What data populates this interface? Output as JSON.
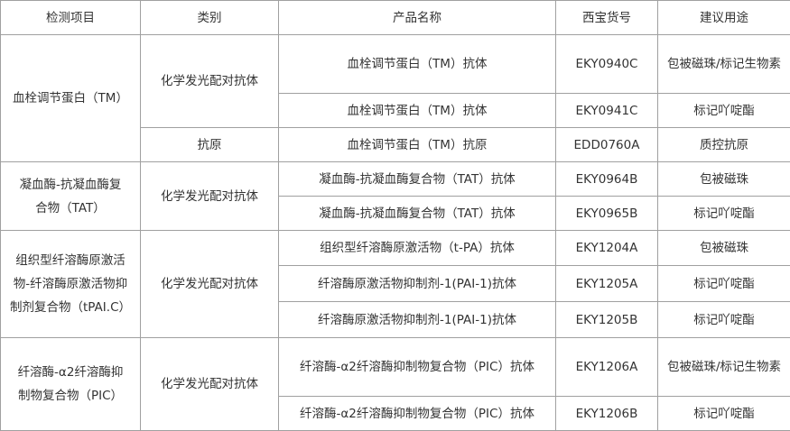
{
  "headers": [
    "检测项目",
    "类别",
    "产品名称",
    "西宝货号",
    "建议用途"
  ],
  "groups": [
    {
      "item": "血栓调节蛋白（TM）",
      "categories": [
        {
          "name": "化学发光配对抗体",
          "rows": [
            {
              "product": "血栓调节蛋白（TM）抗体",
              "sku": "EKY0940C",
              "use": "包被磁珠/标记生物素"
            },
            {
              "product": "血栓调节蛋白（TM）抗体",
              "sku": "EKY0941C",
              "use": "标记吖啶酯"
            }
          ]
        },
        {
          "name": "抗原",
          "rows": [
            {
              "product": "血栓调节蛋白（TM）抗原",
              "sku": "EDD0760A",
              "use": "质控抗原"
            }
          ]
        }
      ]
    },
    {
      "item": "凝血酶-抗凝血酶复合物（TAT）",
      "categories": [
        {
          "name": "化学发光配对抗体",
          "rows": [
            {
              "product": "凝血酶-抗凝血酶复合物（TAT）抗体",
              "sku": "EKY0964B",
              "use": "包被磁珠"
            },
            {
              "product": "凝血酶-抗凝血酶复合物（TAT）抗体",
              "sku": "EKY0965B",
              "use": "标记吖啶酯"
            }
          ]
        }
      ]
    },
    {
      "item": "组织型纤溶酶原激活物-纤溶酶原激活物抑制剂复合物（tPAI.C）",
      "categories": [
        {
          "name": "化学发光配对抗体",
          "rows": [
            {
              "product": "组织型纤溶酶原激活物（t-PA）抗体",
              "sku": "EKY1204A",
              "use": "包被磁珠"
            },
            {
              "product": "纤溶酶原激活物抑制剂-1(PAI-1)抗体",
              "sku": "EKY1205A",
              "use": "标记吖啶酯"
            },
            {
              "product": "纤溶酶原激活物抑制剂-1(PAI-1)抗体",
              "sku": "EKY1205B",
              "use": "标记吖啶酯"
            }
          ]
        }
      ]
    },
    {
      "item": "纤溶酶-α2纤溶酶抑制物复合物（PIC）",
      "categories": [
        {
          "name": "化学发光配对抗体",
          "rows": [
            {
              "product": "纤溶酶-α2纤溶酶抑制物复合物（PIC）抗体",
              "sku": "EKY1206A",
              "use": "包被磁珠/标记生物素"
            },
            {
              "product": "纤溶酶-α2纤溶酶抑制物复合物（PIC）抗体",
              "sku": "EKY1206B",
              "use": "标记吖啶酯"
            }
          ]
        }
      ]
    }
  ]
}
